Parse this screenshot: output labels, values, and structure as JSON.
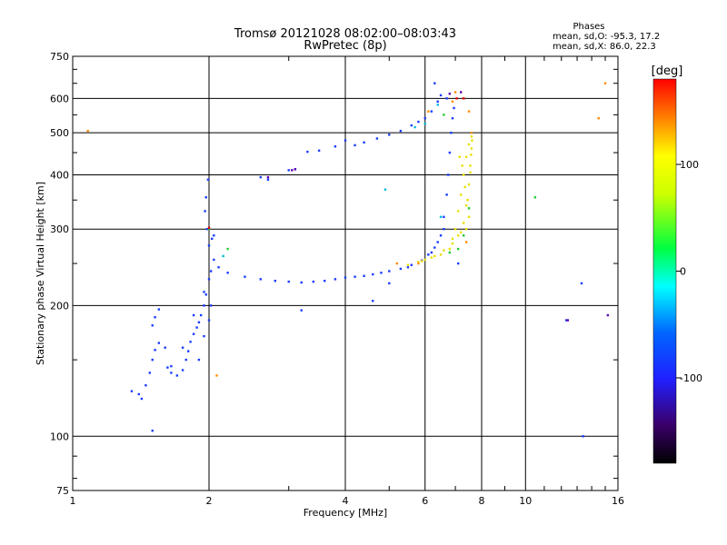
{
  "chart_data": {
    "type": "scatter",
    "title": "Tromsø 20121028 08:02:00–08:03:43",
    "subtitle": "RwPretec (8p)",
    "xlabel": "Frequency [MHz]",
    "ylabel": "Stationary phase Virtual Height [km]",
    "x_scale": "log",
    "y_scale": "log",
    "xlim": [
      1,
      16
    ],
    "ylim": [
      75,
      750
    ],
    "grid": true,
    "x_ticks": [
      1,
      2,
      4,
      6,
      8,
      10,
      16
    ],
    "x_tick_labels": [
      "1",
      "2",
      "4",
      "6",
      "8",
      "10",
      "16"
    ],
    "y_ticks": [
      75,
      100,
      200,
      300,
      400,
      500,
      600,
      750
    ],
    "y_tick_labels": [
      "75",
      "100",
      "200",
      "300",
      "400",
      "500",
      "600",
      "750"
    ],
    "stats": {
      "title": "Phases",
      "line1": "mean, sd,O: -95.3, 17.2",
      "line2": "mean, sd,X:  86.0, 22.3"
    },
    "colorbar": {
      "label": "[deg]",
      "range": [
        -180,
        180
      ],
      "ticks": [
        100,
        0,
        -100
      ],
      "tick_labels": [
        "100",
        "0",
        "-100"
      ]
    },
    "series": [
      {
        "mode": "O",
        "phase_color": "#1a3cff",
        "points": [
          [
            1.35,
            127
          ],
          [
            1.4,
            125
          ],
          [
            1.42,
            122
          ],
          [
            1.45,
            131
          ],
          [
            1.48,
            140
          ],
          [
            1.5,
            150
          ],
          [
            1.52,
            158
          ],
          [
            1.55,
            164
          ],
          [
            1.5,
            180
          ],
          [
            1.52,
            188
          ],
          [
            1.55,
            196
          ],
          [
            1.6,
            160
          ],
          [
            1.62,
            144
          ],
          [
            1.65,
            140
          ],
          [
            1.7,
            138
          ],
          [
            1.75,
            142
          ],
          [
            1.78,
            150
          ],
          [
            1.8,
            157
          ],
          [
            1.82,
            165
          ],
          [
            1.85,
            172
          ],
          [
            1.88,
            178
          ],
          [
            1.9,
            183
          ],
          [
            1.92,
            190
          ],
          [
            1.95,
            200
          ],
          [
            1.97,
            212
          ],
          [
            2.0,
            230
          ],
          [
            2.02,
            240
          ],
          [
            2.05,
            255
          ],
          [
            2.0,
            275
          ],
          [
            1.98,
            300
          ],
          [
            1.96,
            330
          ],
          [
            1.97,
            355
          ],
          [
            1.99,
            390
          ],
          [
            2.03,
            285
          ],
          [
            2.05,
            290
          ],
          [
            1.5,
            103
          ],
          [
            1.9,
            150
          ],
          [
            1.95,
            170
          ],
          [
            2.0,
            185
          ],
          [
            2.02,
            200
          ],
          [
            1.85,
            190
          ],
          [
            1.75,
            160
          ],
          [
            1.65,
            145
          ],
          [
            1.95,
            215
          ],
          [
            2.1,
            245
          ],
          [
            2.2,
            238
          ],
          [
            2.4,
            233
          ],
          [
            2.6,
            230
          ],
          [
            2.8,
            228
          ],
          [
            3.0,
            227
          ],
          [
            3.2,
            226
          ],
          [
            3.4,
            227
          ],
          [
            3.6,
            228
          ],
          [
            3.8,
            230
          ],
          [
            4.0,
            232
          ],
          [
            4.2,
            233
          ],
          [
            4.4,
            234
          ],
          [
            4.6,
            236
          ],
          [
            4.8,
            238
          ],
          [
            5.0,
            240
          ],
          [
            5.3,
            243
          ],
          [
            5.6,
            248
          ],
          [
            5.9,
            254
          ],
          [
            6.1,
            262
          ],
          [
            6.3,
            272
          ],
          [
            6.5,
            290
          ],
          [
            6.6,
            320
          ],
          [
            6.7,
            360
          ],
          [
            6.75,
            400
          ],
          [
            6.8,
            450
          ],
          [
            6.85,
            500
          ],
          [
            6.9,
            540
          ],
          [
            6.95,
            570
          ],
          [
            6.7,
            600
          ],
          [
            6.5,
            610
          ],
          [
            6.4,
            590
          ],
          [
            6.2,
            560
          ],
          [
            6.0,
            540
          ],
          [
            5.8,
            530
          ],
          [
            5.6,
            520
          ],
          [
            5.3,
            505
          ],
          [
            5.0,
            495
          ],
          [
            4.7,
            485
          ],
          [
            4.4,
            475
          ],
          [
            4.2,
            468
          ],
          [
            4.0,
            480
          ],
          [
            3.8,
            465
          ],
          [
            3.5,
            455
          ],
          [
            3.3,
            452
          ],
          [
            3.1,
            412
          ],
          [
            3.0,
            410
          ],
          [
            2.6,
            395
          ],
          [
            2.7,
            390
          ],
          [
            3.2,
            195
          ],
          [
            4.6,
            205
          ],
          [
            5.0,
            225
          ],
          [
            5.5,
            245
          ],
          [
            6.2,
            265
          ],
          [
            6.4,
            280
          ],
          [
            6.6,
            300
          ],
          [
            7.1,
            250
          ],
          [
            6.3,
            650
          ],
          [
            12.3,
            185
          ],
          [
            13.3,
            225
          ],
          [
            13.4,
            100
          ]
        ]
      },
      {
        "mode": "X",
        "phase_color": "#e8e000",
        "points": [
          [
            5.5,
            248
          ],
          [
            5.8,
            252
          ],
          [
            6.0,
            255
          ],
          [
            6.3,
            260
          ],
          [
            6.6,
            268
          ],
          [
            6.9,
            278
          ],
          [
            7.1,
            290
          ],
          [
            7.3,
            310
          ],
          [
            7.4,
            340
          ],
          [
            7.5,
            380
          ],
          [
            7.55,
            420
          ],
          [
            7.6,
            460
          ],
          [
            7.6,
            490
          ],
          [
            7.5,
            470
          ],
          [
            7.4,
            440
          ],
          [
            7.3,
            400
          ],
          [
            7.2,
            360
          ],
          [
            7.1,
            330
          ],
          [
            7.0,
            300
          ],
          [
            6.9,
            285
          ],
          [
            7.45,
            350
          ],
          [
            7.5,
            320
          ],
          [
            7.35,
            375
          ],
          [
            7.25,
            420
          ],
          [
            7.15,
            440
          ],
          [
            6.8,
            270
          ],
          [
            6.5,
            262
          ],
          [
            6.2,
            258
          ],
          [
            5.9,
            253
          ],
          [
            7.55,
            405
          ],
          [
            7.58,
            445
          ],
          [
            7.62,
            480
          ],
          [
            7.4,
            300
          ],
          [
            7.2,
            295
          ]
        ]
      },
      {
        "mode": "X",
        "phase_color": "#ff8c00",
        "points": [
          [
            1.08,
            505
          ],
          [
            2.08,
            138
          ],
          [
            5.2,
            250
          ],
          [
            5.8,
            250
          ],
          [
            6.9,
            590
          ],
          [
            7.4,
            280
          ],
          [
            7.6,
            500
          ],
          [
            7.5,
            560
          ],
          [
            6.1,
            560
          ],
          [
            14.5,
            540
          ],
          [
            15.0,
            650
          ],
          [
            7.0,
            620
          ]
        ]
      },
      {
        "mode": "X",
        "phase_color": "#22cc33",
        "points": [
          [
            7.1,
            270
          ],
          [
            7.3,
            290
          ],
          [
            7.5,
            335
          ],
          [
            6.8,
            265
          ],
          [
            2.2,
            270
          ],
          [
            2.0,
            300
          ],
          [
            10.5,
            355
          ],
          [
            6.6,
            550
          ]
        ]
      },
      {
        "mode": "O",
        "phase_color": "#00b8d8",
        "points": [
          [
            6.0,
            525
          ],
          [
            6.4,
            580
          ],
          [
            5.7,
            515
          ],
          [
            4.9,
            370
          ],
          [
            6.5,
            320
          ],
          [
            2.15,
            260
          ]
        ]
      },
      {
        "mode": "O",
        "phase_color": "#5a00b0",
        "points": [
          [
            3.1,
            412
          ],
          [
            2.7,
            395
          ],
          [
            3.05,
            410
          ],
          [
            6.8,
            615
          ],
          [
            7.2,
            620
          ],
          [
            12.4,
            185
          ],
          [
            15.2,
            190
          ]
        ]
      },
      {
        "mode": "X",
        "phase_color": "#e80000",
        "points": [
          [
            7.05,
            600
          ],
          [
            7.3,
            600
          ],
          [
            2.0,
            302
          ]
        ]
      }
    ]
  }
}
